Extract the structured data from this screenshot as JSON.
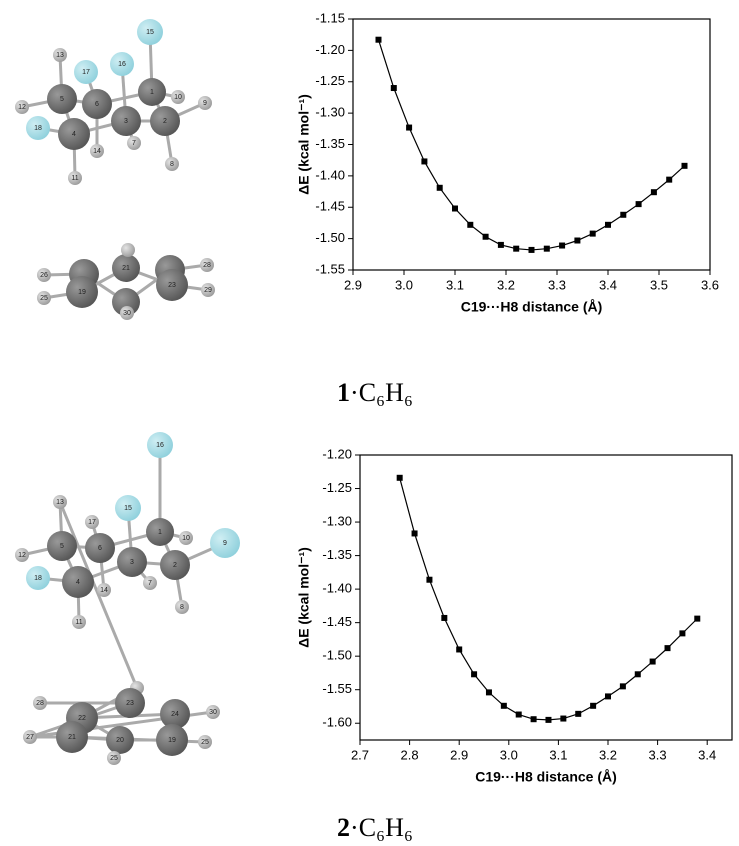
{
  "chart_data": [
    {
      "type": "line",
      "x_label": "C19···H8 distance (Å)",
      "y_label": "ΔE (kcal mol⁻¹)",
      "caption_number": "1",
      "caption_formula": "·C₆H₆",
      "x": [
        2.95,
        2.98,
        3.01,
        3.04,
        3.07,
        3.1,
        3.13,
        3.16,
        3.19,
        3.22,
        3.25,
        3.28,
        3.31,
        3.34,
        3.37,
        3.4,
        3.43,
        3.46,
        3.49,
        3.52,
        3.55
      ],
      "series": [
        {
          "color": "#000000",
          "values": [
            -1.183,
            -1.26,
            -1.323,
            -1.377,
            -1.419,
            -1.452,
            -1.478,
            -1.497,
            -1.51,
            -1.516,
            -1.518,
            -1.516,
            -1.511,
            -1.503,
            -1.492,
            -1.478,
            -1.462,
            -1.445,
            -1.426,
            -1.406,
            -1.384
          ]
        }
      ],
      "xlim": [
        2.9,
        3.6
      ],
      "xticks": [
        2.9,
        {
          "value": 3,
          "label": "3.0"
        },
        3.1,
        3.2,
        3.3,
        3.4,
        3.5,
        3.6
      ],
      "ylim": [
        -1.55,
        -1.15
      ],
      "yticks": [
        -1.55,
        {
          "value": -1.5,
          "label": "-1.50"
        },
        -1.45,
        {
          "value": -1.4,
          "label": "-1.40"
        },
        -1.35,
        {
          "value": -1.3,
          "label": "-1.30"
        },
        -1.25,
        {
          "value": -1.2,
          "label": "-1.20"
        },
        -1.15
      ]
    },
    {
      "type": "line",
      "x_label": "C19···H8 distance (Å)",
      "y_label": "ΔE (kcal mol⁻¹)",
      "caption_number": "2",
      "caption_formula": "·C₆H₆",
      "x": [
        2.78,
        2.81,
        2.84,
        2.87,
        2.9,
        2.93,
        2.96,
        2.99,
        3.02,
        3.05,
        3.08,
        3.11,
        3.14,
        3.17,
        3.2,
        3.23,
        3.26,
        3.29,
        3.32,
        3.35,
        3.38
      ],
      "series": [
        {
          "color": "#000000",
          "values": [
            -1.234,
            -1.317,
            -1.386,
            -1.443,
            -1.49,
            -1.527,
            -1.554,
            -1.574,
            -1.587,
            -1.594,
            -1.595,
            -1.593,
            -1.586,
            -1.574,
            -1.56,
            -1.545,
            -1.527,
            -1.508,
            -1.488,
            -1.466,
            -1.444
          ]
        }
      ],
      "xlim": [
        2.7,
        3.45
      ],
      "xticks": [
        2.7,
        2.8,
        2.9,
        {
          "value": 3,
          "label": "3.0"
        },
        3.1,
        3.2,
        3.3,
        3.4
      ],
      "ylim": [
        -1.625,
        -1.2
      ],
      "yticks": [
        {
          "value": -1.6,
          "label": "-1.60"
        },
        -1.55,
        {
          "value": -1.5,
          "label": "-1.50"
        },
        -1.45,
        {
          "value": -1.4,
          "label": "-1.40"
        },
        -1.35,
        {
          "value": -1.3,
          "label": "-1.30"
        },
        -1.25,
        {
          "value": -1.2,
          "label": "-1.20"
        }
      ]
    }
  ],
  "molecules": [
    {
      "atom_labels": [
        "15",
        "13",
        "17",
        "16",
        "1",
        "10",
        "9",
        "12",
        "5",
        "6",
        "3",
        "2",
        "18",
        "4",
        "14",
        "7",
        "8",
        "11",
        "26",
        "25",
        "19",
        "21",
        "23",
        "28",
        "29",
        "30"
      ]
    },
    {
      "atom_labels": [
        "16",
        "13",
        "17",
        "15",
        "1",
        "10",
        "9",
        "12",
        "5",
        "6",
        "3",
        "2",
        "18",
        "4",
        "14",
        "7",
        "8",
        "11",
        "28",
        "23",
        "22",
        "24",
        "30",
        "27",
        "21",
        "20",
        "19",
        "25",
        "25"
      ]
    }
  ]
}
